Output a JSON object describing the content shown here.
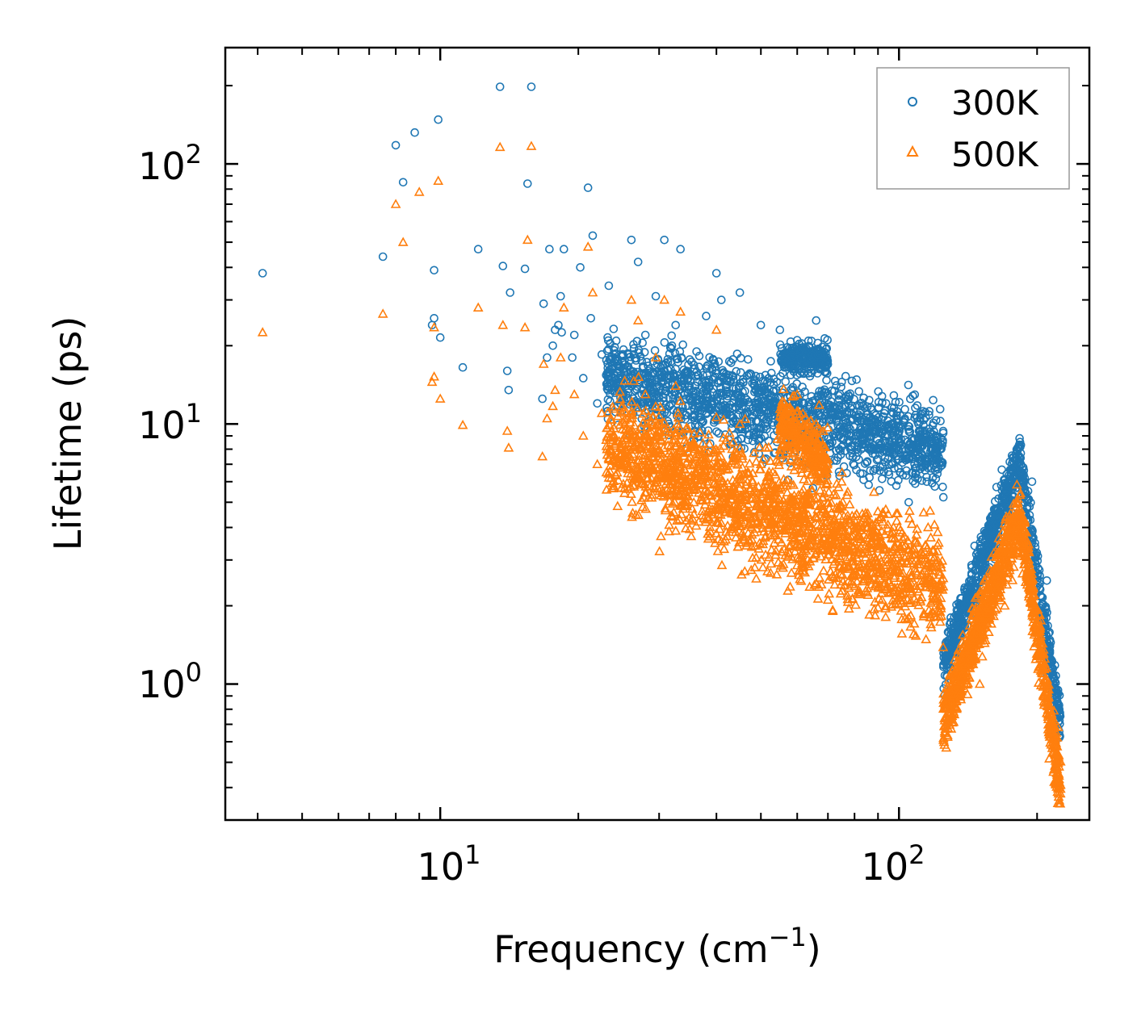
{
  "chart_data": {
    "type": "scatter",
    "title": "",
    "xlabel": "Frequency (cm",
    "xlabel_sup": "−1",
    "xlabel_end": ")",
    "ylabel": "Lifetime (ps)",
    "xscale": "log",
    "yscale": "log",
    "xlim": [
      3.4,
      260
    ],
    "ylim": [
      0.3,
      280
    ],
    "x_ticks": [
      {
        "base": "10",
        "exp": "1",
        "value": 10
      },
      {
        "base": "10",
        "exp": "2",
        "value": 100
      }
    ],
    "y_ticks": [
      {
        "base": "10",
        "exp": "0",
        "value": 1
      },
      {
        "base": "10",
        "exp": "1",
        "value": 10
      },
      {
        "base": "10",
        "exp": "2",
        "value": 100
      }
    ],
    "legend_position": "top-right",
    "series": [
      {
        "name": "300K",
        "marker": "circle",
        "color": "#1f77b4",
        "points": [
          [
            4.1,
            38
          ],
          [
            7.5,
            44
          ],
          [
            8.0,
            118
          ],
          [
            8.3,
            85
          ],
          [
            8.8,
            132
          ],
          [
            9.6,
            24
          ],
          [
            9.7,
            25.5
          ],
          [
            9.7,
            39
          ],
          [
            9.9,
            148
          ],
          [
            10.0,
            21.5
          ],
          [
            11.2,
            16.5
          ],
          [
            12.1,
            47
          ],
          [
            13.5,
            198
          ],
          [
            13.7,
            40.5
          ],
          [
            14.0,
            16
          ],
          [
            14.1,
            13.5
          ],
          [
            14.2,
            32
          ],
          [
            15.3,
            39.5
          ],
          [
            15.5,
            84
          ],
          [
            15.8,
            198
          ],
          [
            16.7,
            12.5
          ],
          [
            16.8,
            29
          ],
          [
            17.1,
            18
          ],
          [
            17.3,
            47
          ],
          [
            17.6,
            20
          ],
          [
            17.8,
            23
          ],
          [
            18.1,
            24
          ],
          [
            18.3,
            31
          ],
          [
            18.4,
            22.5
          ],
          [
            18.6,
            47
          ],
          [
            19.4,
            18
          ],
          [
            19.6,
            22
          ],
          [
            20.2,
            40
          ],
          [
            20.5,
            15
          ],
          [
            21.0,
            81
          ],
          [
            21.3,
            25.5
          ],
          [
            21.5,
            53
          ],
          [
            22.0,
            12
          ],
          [
            22.5,
            18.5
          ],
          [
            23.3,
            34
          ],
          [
            26.1,
            51
          ],
          [
            27.0,
            42
          ],
          [
            28.0,
            22
          ],
          [
            28.5,
            16
          ],
          [
            29.5,
            31
          ],
          [
            30.8,
            51
          ],
          [
            32.0,
            20
          ],
          [
            32.6,
            24
          ],
          [
            33.4,
            47
          ],
          [
            34.5,
            16
          ],
          [
            36.0,
            14
          ],
          [
            38.0,
            26
          ],
          [
            40.0,
            38
          ],
          [
            41.0,
            30
          ],
          [
            45.0,
            32
          ],
          [
            50.0,
            24
          ],
          [
            55.0,
            23
          ],
          [
            60.0,
            21
          ],
          [
            66.0,
            25
          ],
          [
            75.0,
            14.5
          ],
          [
            85.0,
            9.5
          ],
          [
            95.0,
            7
          ],
          [
            105.0,
            5
          ],
          [
            115.0,
            6
          ],
          [
            130.0,
            1.3
          ],
          [
            150.0,
            2
          ],
          [
            170.0,
            4.5
          ],
          [
            183.0,
            7.5
          ],
          [
            195.0,
            6
          ],
          [
            210.0,
            2.5
          ],
          [
            218.0,
            0.9
          ]
        ]
      },
      {
        "name": "500K",
        "marker": "triangle",
        "color": "#ff7f0e",
        "points": [
          [
            4.1,
            22.5
          ],
          [
            7.5,
            26.5
          ],
          [
            8.0,
            70
          ],
          [
            8.3,
            50
          ],
          [
            9.0,
            78
          ],
          [
            9.6,
            14.5
          ],
          [
            9.7,
            15.2
          ],
          [
            9.7,
            23.5
          ],
          [
            9.9,
            86
          ],
          [
            10.0,
            12.5
          ],
          [
            11.2,
            9.9
          ],
          [
            12.1,
            28
          ],
          [
            13.5,
            116
          ],
          [
            13.7,
            24
          ],
          [
            14.0,
            9.4
          ],
          [
            14.1,
            8.1
          ],
          [
            15.3,
            23.5
          ],
          [
            15.5,
            51
          ],
          [
            15.8,
            117
          ],
          [
            16.7,
            7.5
          ],
          [
            16.8,
            17
          ],
          [
            17.1,
            10.5
          ],
          [
            17.6,
            11.7
          ],
          [
            17.8,
            13.5
          ],
          [
            18.3,
            18
          ],
          [
            18.6,
            28
          ],
          [
            19.6,
            13
          ],
          [
            20.5,
            9
          ],
          [
            21.0,
            48
          ],
          [
            21.5,
            32
          ],
          [
            22.0,
            7
          ],
          [
            22.5,
            11
          ],
          [
            26.1,
            30
          ],
          [
            27.0,
            25
          ],
          [
            28.0,
            13
          ],
          [
            29.5,
            18
          ],
          [
            30.8,
            30
          ],
          [
            32.6,
            14
          ],
          [
            33.4,
            27
          ],
          [
            36.0,
            8
          ],
          [
            40.0,
            23
          ],
          [
            45.0,
            10
          ],
          [
            50.0,
            7
          ],
          [
            55.0,
            9
          ],
          [
            60.0,
            13
          ],
          [
            66.0,
            10
          ],
          [
            75.0,
            6
          ],
          [
            85.0,
            4
          ],
          [
            95.0,
            2.5
          ],
          [
            105.0,
            1.8
          ],
          [
            115.0,
            3
          ],
          [
            130.0,
            0.75
          ],
          [
            150.0,
            1
          ],
          [
            170.0,
            2
          ],
          [
            183.0,
            4.5
          ],
          [
            195.0,
            2.5
          ],
          [
            210.0,
            1
          ],
          [
            218.0,
            0.42
          ]
        ]
      }
    ],
    "dense_clusters": [
      {
        "series": "300K",
        "x": [
          23,
          125
        ],
        "y_center": [
          15.5,
          8
        ],
        "spread": 0.35,
        "count": 1600
      },
      {
        "series": "300K",
        "x": [
          55,
          70
        ],
        "y_center": [
          18,
          18
        ],
        "spread": 0.12,
        "count": 250
      },
      {
        "series": "300K",
        "x": [
          125,
          225
        ],
        "y_peak": 7.2,
        "x_peak": 183,
        "y_low": [
          1.2,
          0.7
        ],
        "spread": 0.2,
        "count": 900
      },
      {
        "series": "500K",
        "x": [
          23,
          125
        ],
        "y_center": [
          8.5,
          2.4
        ],
        "spread": 0.45,
        "count": 1900
      },
      {
        "series": "500K",
        "x": [
          55,
          70
        ],
        "y_center": [
          10,
          7
        ],
        "spread": 0.25,
        "count": 300
      },
      {
        "series": "500K",
        "x": [
          125,
          225
        ],
        "y_peak": 4.5,
        "x_peak": 183,
        "y_low": [
          0.72,
          0.4
        ],
        "spread": 0.25,
        "count": 1100
      }
    ]
  }
}
